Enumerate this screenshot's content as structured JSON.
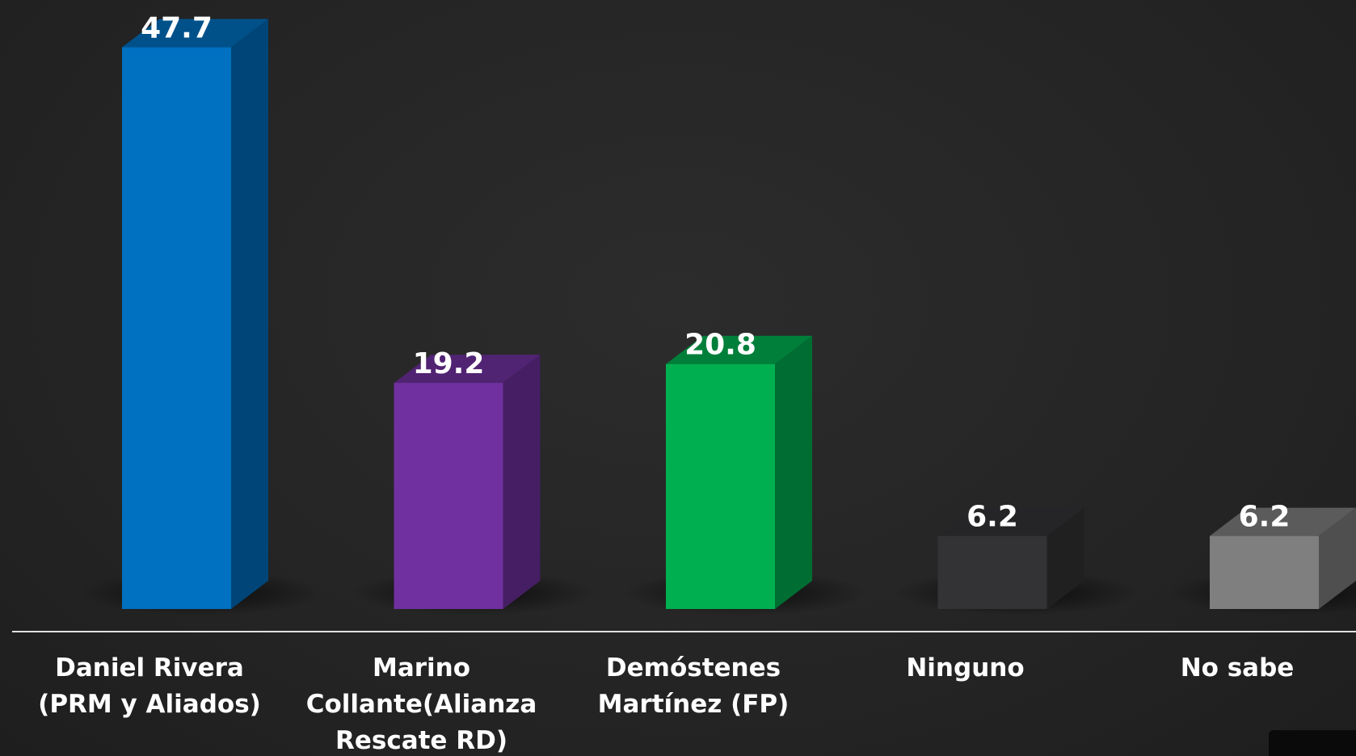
{
  "chart_data": {
    "type": "bar3d",
    "categories": [
      "Daniel Rivera (PRM y Aliados)",
      "Marino Collante(Alianza Rescate RD)",
      "Demóstenes Martínez (FP)",
      "Ninguno",
      "No sabe"
    ],
    "values": [
      47.7,
      19.2,
      20.8,
      6.2,
      6.2
    ],
    "colors": [
      "#0070c0",
      "#7030a0",
      "#00b050",
      "#333336",
      "#7f7f7f"
    ],
    "ylim": [
      0,
      50
    ]
  }
}
